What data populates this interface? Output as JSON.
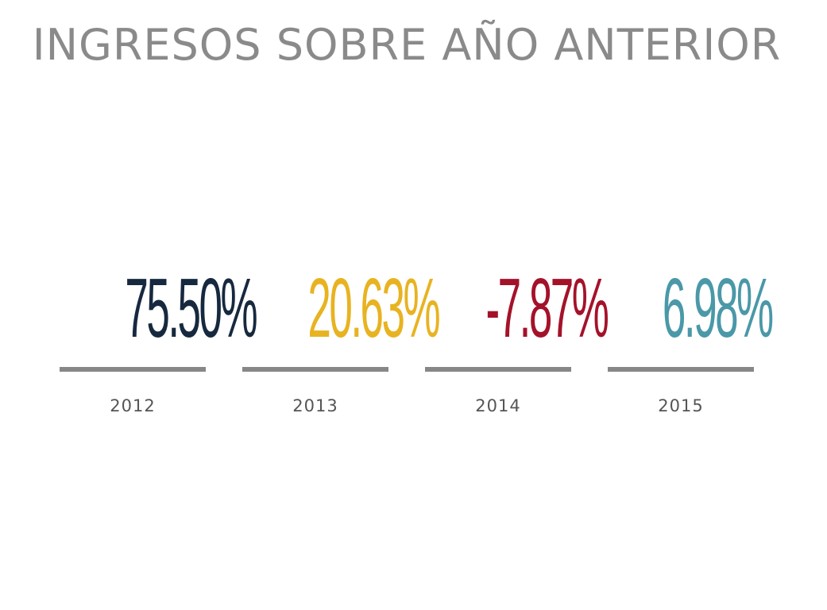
{
  "title": "INGRESOS SOBRE AÑO ANTERIOR",
  "stats": [
    {
      "value": "75.50%",
      "year": "2012",
      "color": "#17293f"
    },
    {
      "value": "20.63%",
      "year": "2013",
      "color": "#e8b321"
    },
    {
      "value": "-7.87%",
      "year": "2014",
      "color": "#a4122a"
    },
    {
      "value": "6.98%",
      "year": "2015",
      "color": "#4a98a8"
    }
  ],
  "colors": {
    "title": "#8a8a8a",
    "bar": "#878787",
    "year": "#555555"
  }
}
